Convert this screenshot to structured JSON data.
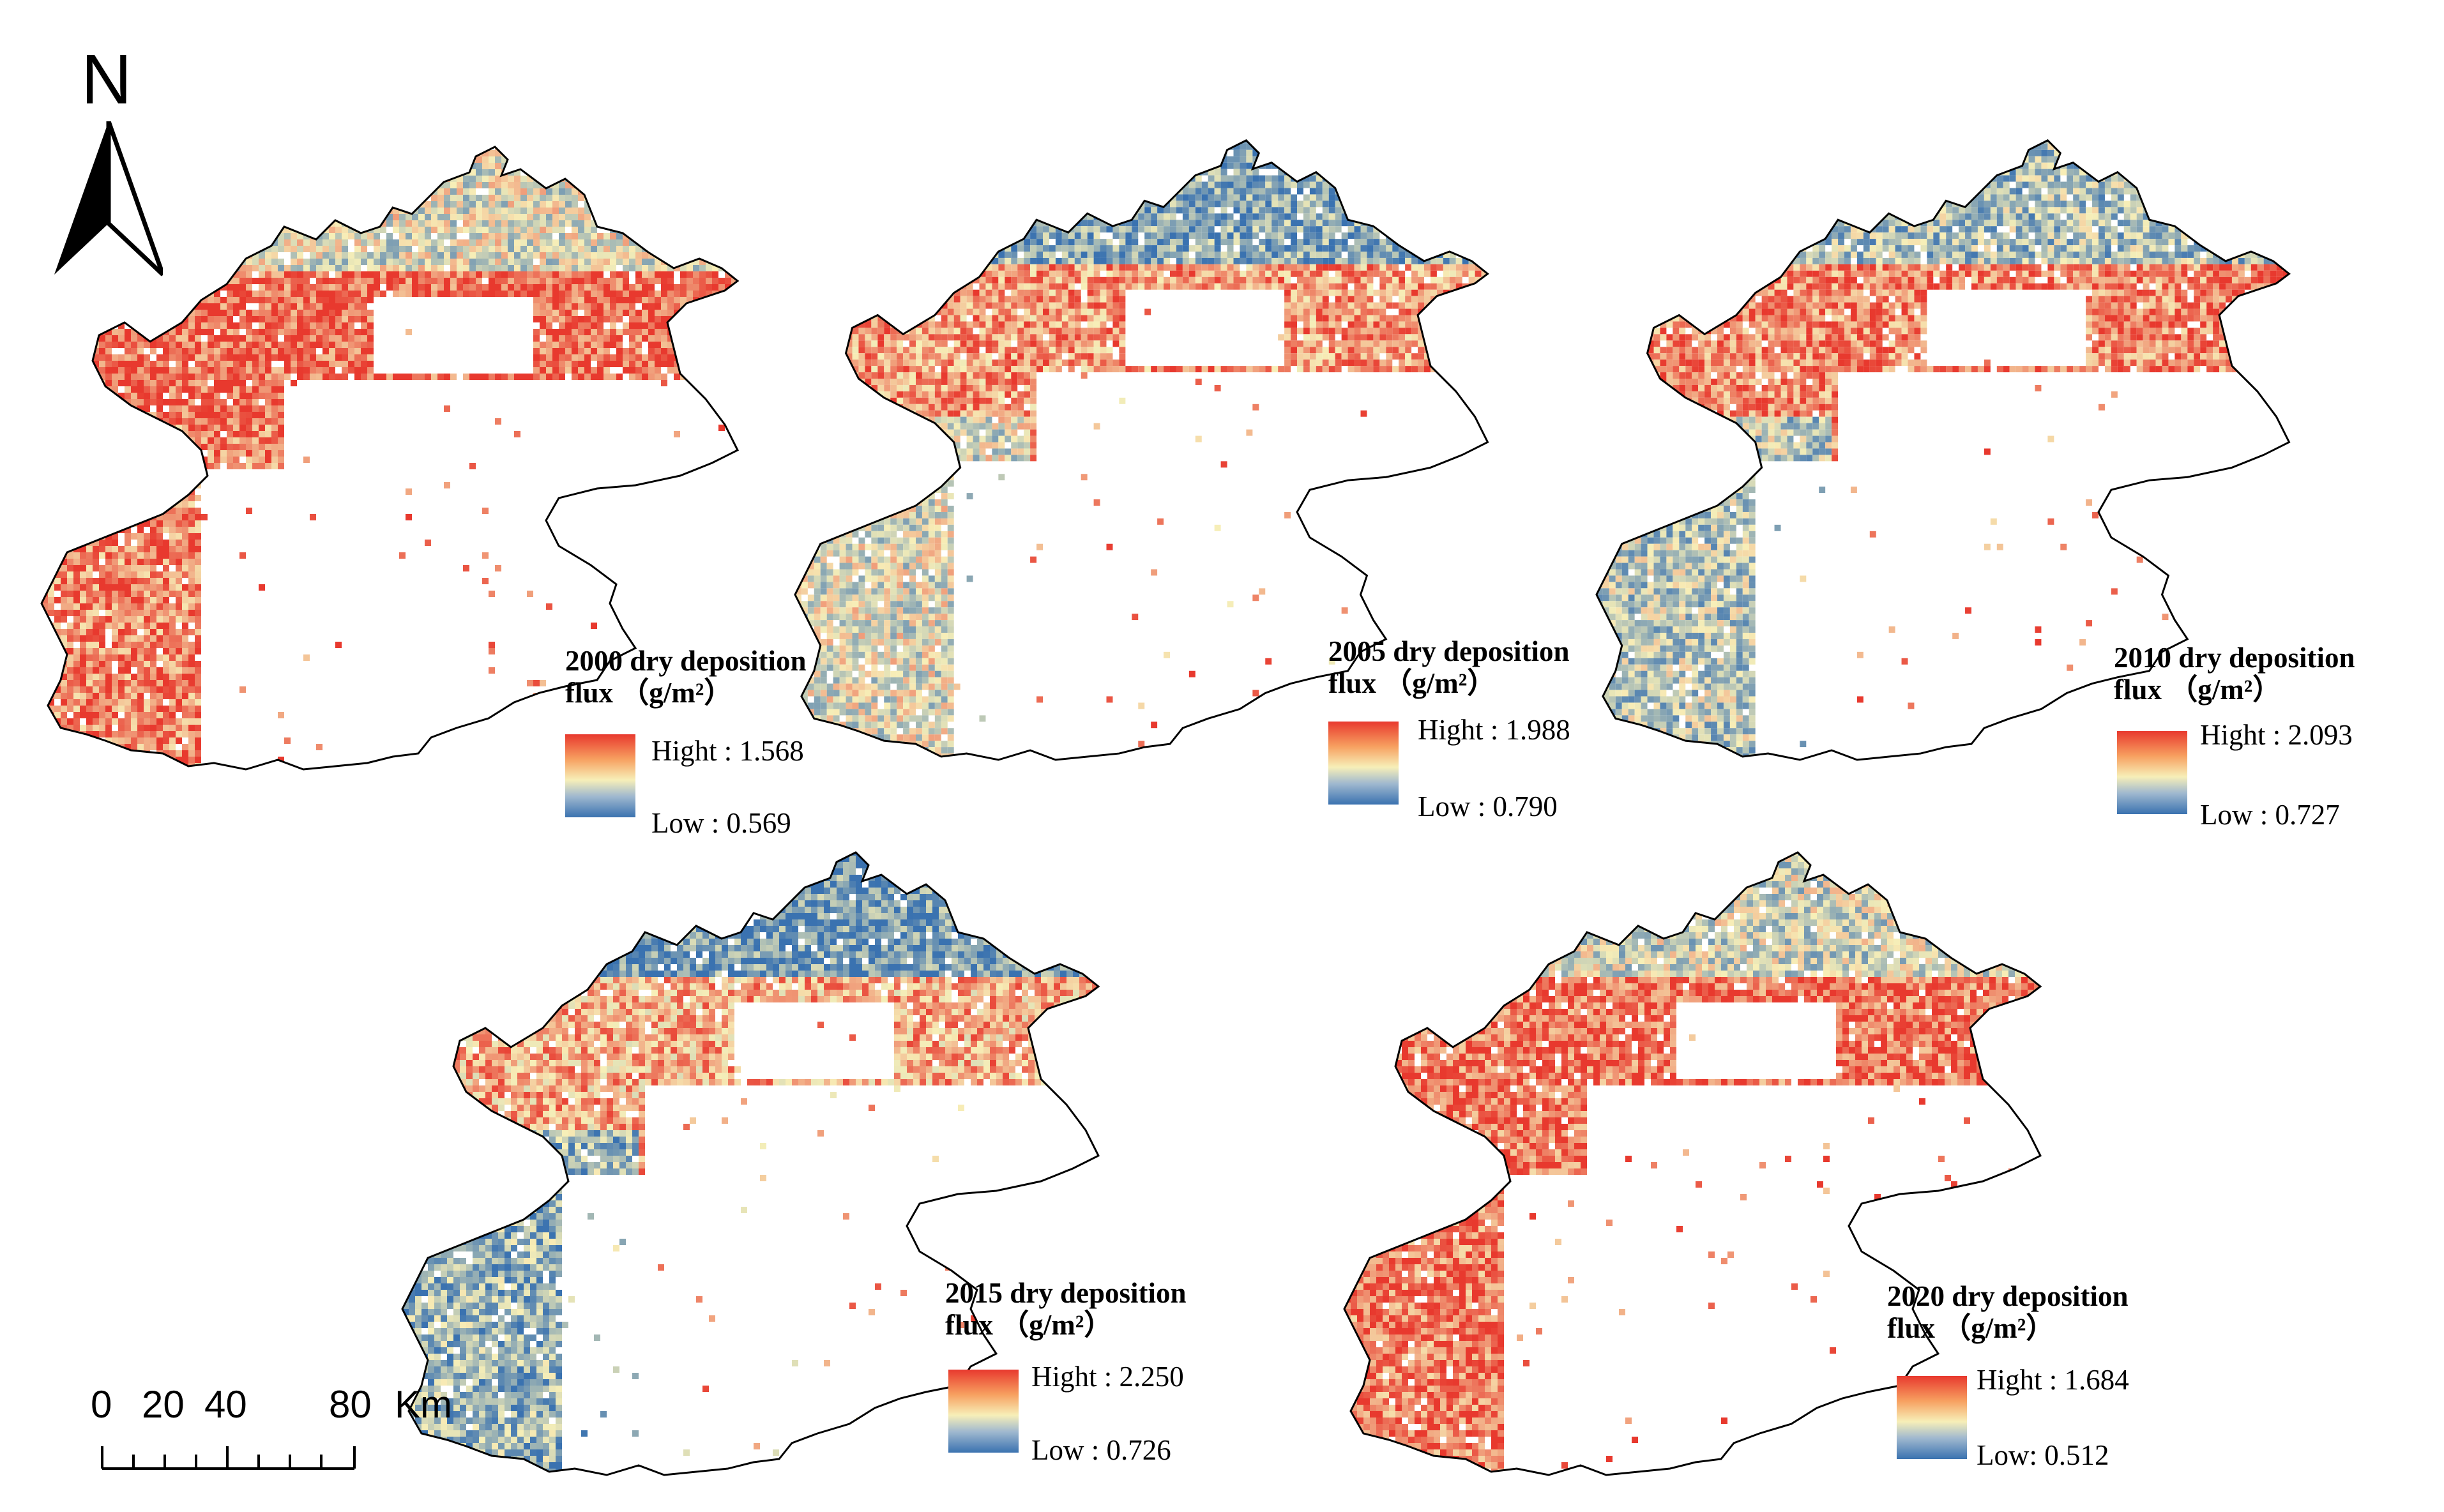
{
  "north_arrow": {
    "label": "N"
  },
  "scale_bar": {
    "ticks": [
      "0",
      "20",
      "40",
      "80"
    ],
    "unit": "Km"
  },
  "color_ramp": {
    "high": "#e8392e",
    "mid": "#f7efb8",
    "low": "#3a72b0"
  },
  "maps": [
    {
      "year": "2000",
      "title_line1": "2000 dry deposition",
      "title_line2": "flux （g/m²）",
      "high_label": "Hight : 1.568",
      "low_label": "Low : 0.569",
      "pattern": {
        "north": 0.45,
        "center": 0.88,
        "west": 0.8
      }
    },
    {
      "year": "2005",
      "title_line1": "2005 dry deposition",
      "title_line2": "flux （g/m²）",
      "high_label": "Hight : 1.988",
      "low_label": "Low : 0.790",
      "pattern": {
        "north": 0.2,
        "center": 0.75,
        "west": 0.45
      }
    },
    {
      "year": "2010",
      "title_line1": "2010 dry deposition",
      "title_line2": "flux （g/m²）",
      "high_label": "Hight : 2.093",
      "low_label": "Low : 0.727",
      "pattern": {
        "north": 0.3,
        "center": 0.8,
        "west": 0.35
      }
    },
    {
      "year": "2015",
      "title_line1": "2015 dry deposition",
      "title_line2": "flux （g/m²）",
      "high_label": "Hight : 2.250",
      "low_label": "Low : 0.726",
      "pattern": {
        "north": 0.15,
        "center": 0.7,
        "west": 0.25
      }
    },
    {
      "year": "2020",
      "title_line1": "2020 dry deposition",
      "title_line2": "flux （g/m²）",
      "high_label": "Hight : 1.684",
      "low_label": "Low: 0.512",
      "pattern": {
        "north": 0.4,
        "center": 0.85,
        "west": 0.82
      }
    }
  ]
}
